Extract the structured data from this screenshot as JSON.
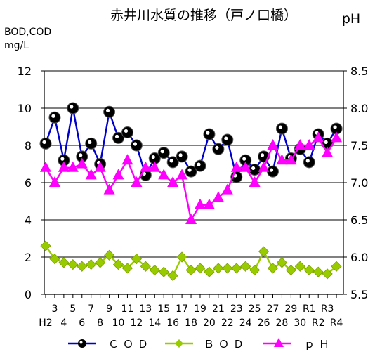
{
  "chart_data": {
    "type": "line",
    "title": "赤井川水質の推移（戸ノ口橋）",
    "ylabel_left": [
      "BOD,COD",
      "mg/L"
    ],
    "ylabel_right": "pH",
    "ylim_left": [
      0,
      12
    ],
    "ylim_right": [
      5.5,
      8.5
    ],
    "yticks_left": [
      "0",
      "2",
      "4",
      "6",
      "8",
      "10",
      "12"
    ],
    "yticks_right": [
      "5.5",
      "6.0",
      "6.5",
      "7.0",
      "7.5",
      "8.0",
      "8.5"
    ],
    "x": [
      "H2",
      "3",
      "4",
      "5",
      "6",
      "7",
      "8",
      "9",
      "10",
      "11",
      "12",
      "13",
      "14",
      "15",
      "16",
      "17",
      "18",
      "19",
      "20",
      "21",
      "22",
      "23",
      "24",
      "25",
      "26",
      "27",
      "28",
      "29",
      "30",
      "R1",
      "R2",
      "R3",
      "R4"
    ],
    "x_labels_top": [
      "",
      "3",
      "",
      "5",
      "",
      "7",
      "",
      "9",
      "",
      "11",
      "",
      "13",
      "",
      "15",
      "",
      "17",
      "",
      "19",
      "",
      "21",
      "",
      "23",
      "",
      "25",
      "",
      "27",
      "",
      "29",
      "",
      "R1",
      "",
      "R3",
      ""
    ],
    "x_labels_bottom": [
      "H2",
      "",
      "4",
      "",
      "6",
      "",
      "8",
      "",
      "10",
      "",
      "12",
      "",
      "14",
      "",
      "16",
      "",
      "18",
      "",
      "20",
      "",
      "22",
      "",
      "24",
      "",
      "26",
      "",
      "28",
      "",
      "30",
      "",
      "R2",
      "",
      "R4"
    ],
    "series": [
      {
        "name": "COD",
        "axis": "left",
        "color": "#0000cc",
        "marker": "ball",
        "values": [
          8.1,
          9.5,
          7.2,
          10.0,
          7.4,
          8.1,
          7.0,
          9.8,
          8.4,
          8.7,
          8.0,
          6.4,
          7.3,
          7.6,
          7.1,
          7.4,
          6.6,
          6.9,
          8.6,
          7.8,
          8.3,
          6.3,
          7.2,
          6.7,
          7.4,
          6.6,
          8.9,
          7.3,
          7.8,
          7.1,
          8.6,
          8.1,
          8.9
        ]
      },
      {
        "name": "BOD",
        "axis": "left",
        "color": "#99cc00",
        "marker": "diamond",
        "values": [
          2.6,
          1.9,
          1.7,
          1.6,
          1.5,
          1.6,
          1.7,
          2.1,
          1.6,
          1.4,
          1.9,
          1.5,
          1.3,
          1.2,
          1.0,
          2.0,
          1.3,
          1.4,
          1.2,
          1.4,
          1.4,
          1.4,
          1.5,
          1.3,
          2.3,
          1.4,
          1.7,
          1.3,
          1.5,
          1.3,
          1.2,
          1.1,
          1.5
        ]
      },
      {
        "name": "pH",
        "axis": "right",
        "color": "#ff00ff",
        "marker": "triangle",
        "values": [
          7.2,
          7.0,
          7.2,
          7.2,
          7.25,
          7.1,
          7.2,
          6.9,
          7.1,
          7.3,
          7.0,
          7.2,
          7.2,
          7.1,
          7.0,
          7.1,
          6.5,
          6.7,
          6.7,
          6.8,
          6.9,
          7.2,
          7.2,
          7.0,
          7.2,
          7.5,
          7.3,
          7.3,
          7.5,
          7.5,
          7.6,
          7.4,
          7.6
        ]
      }
    ],
    "legend": {
      "placement": "bottom",
      "labels": [
        "ＣＯＤ",
        "ＢＯＤ",
        "ｐＨ"
      ]
    },
    "grid": "horizontal"
  }
}
